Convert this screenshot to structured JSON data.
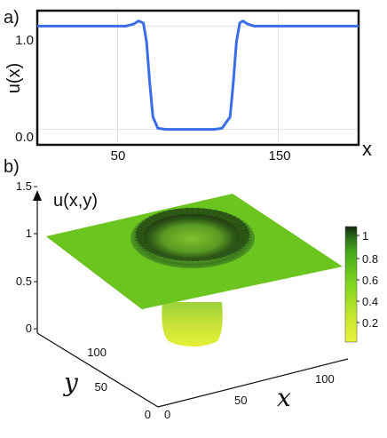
{
  "panel_a": {
    "label": "a)",
    "ylabel": "u(x)",
    "xlabel": "x",
    "yticks": [
      "1.0",
      "0.0"
    ],
    "xticks": [
      "50",
      "150"
    ],
    "line_color": "#3a6ee8"
  },
  "panel_b": {
    "label": "b)",
    "zlabel": "u(x,y)",
    "xlabel": "x",
    "ylabel": "y",
    "zticks": [
      "1.5",
      "1",
      "0.5",
      "0"
    ],
    "yticks": [
      "100",
      "50",
      "0"
    ],
    "xticks": [
      "0",
      "50",
      "100"
    ],
    "colorbar_ticks": [
      "1",
      "0.8",
      "0.6",
      "0.4",
      "0.2"
    ]
  },
  "chart_data": [
    {
      "type": "line",
      "panel": "a",
      "xlabel": "x",
      "ylabel": "u(x)",
      "xlim": [
        0,
        200
      ],
      "ylim": [
        -0.15,
        1.15
      ],
      "x_ticks": [
        50,
        150
      ],
      "y_ticks": [
        0.0,
        1.0
      ],
      "series": [
        {
          "x": [
            0,
            10,
            20,
            30,
            40,
            50,
            55,
            60,
            63,
            66,
            68,
            70,
            72,
            75,
            80,
            90,
            100,
            110,
            115,
            120,
            122,
            124,
            126,
            128,
            131,
            135,
            140,
            150,
            160,
            170,
            180,
            190,
            200
          ],
          "y": [
            1.0,
            1.0,
            1.0,
            1.0,
            1.0,
            1.0,
            1.0,
            1.02,
            1.05,
            1.03,
            0.85,
            0.45,
            0.12,
            0.01,
            0.0,
            0.0,
            0.0,
            0.0,
            0.01,
            0.12,
            0.45,
            0.85,
            1.03,
            1.05,
            1.02,
            1.0,
            1.0,
            1.0,
            1.0,
            1.0,
            1.0,
            1.0,
            1.0
          ]
        }
      ]
    },
    {
      "type": "surface",
      "panel": "b",
      "xlabel": "x",
      "ylabel": "y",
      "zlabel": "u(x,y)",
      "xlim": [
        0,
        130
      ],
      "ylim": [
        0,
        130
      ],
      "zlim": [
        0,
        1.5
      ],
      "x_ticks": [
        0,
        50,
        100
      ],
      "y_ticks": [
        0,
        50,
        100
      ],
      "z_ticks": [
        0,
        0.5,
        1,
        1.5
      ],
      "colorbar": {
        "range": [
          0,
          1.05
        ],
        "ticks": [
          0.2,
          0.4,
          0.6,
          0.8,
          1
        ]
      },
      "description_values": {
        "plateau_level": 1.0,
        "well_minimum": 0.0,
        "rim_peak": 1.05
      }
    }
  ]
}
